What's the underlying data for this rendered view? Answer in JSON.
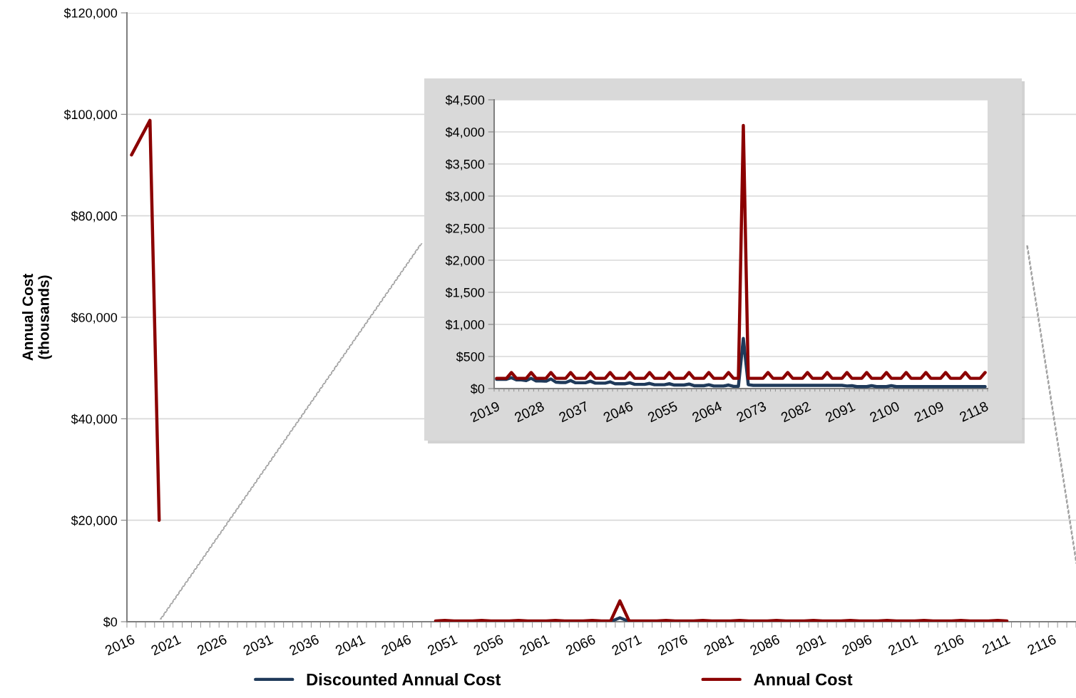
{
  "chart_data": [
    {
      "type": "line",
      "ylabel": "Annual Cost\n(thousands)",
      "categories": [
        "2016",
        null,
        null,
        null,
        null,
        "2021",
        null,
        null,
        null,
        null,
        "2026",
        null,
        null,
        null,
        null,
        "2031",
        null,
        null,
        null,
        null,
        "2036",
        null,
        null,
        null,
        null,
        "2041",
        null,
        null,
        null,
        null,
        "2046",
        null,
        null,
        null,
        null,
        "2051",
        null,
        null,
        null,
        null,
        "2056",
        null,
        null,
        null,
        null,
        "2061",
        null,
        null,
        null,
        null,
        "2066",
        null,
        null,
        null,
        null,
        "2071",
        null,
        null,
        null,
        null,
        "2076",
        null,
        null,
        null,
        null,
        "2081",
        null,
        null,
        null,
        null,
        "2086",
        null,
        null,
        null,
        null,
        "2091",
        null,
        null,
        null,
        null,
        "2096",
        null,
        null,
        null,
        null,
        "2101",
        null,
        null,
        null,
        null,
        "2106",
        null,
        null,
        null,
        null,
        "2111",
        null,
        null,
        null,
        null,
        "2116",
        null,
        null
      ],
      "series": [
        {
          "name": "Discounted Annual Cost",
          "color": "#1f3a5a",
          "values": [
            null,
            null,
            null,
            null,
            null,
            null,
            null,
            null,
            null,
            null,
            null,
            null,
            null,
            null,
            null,
            null,
            null,
            null,
            null,
            null,
            null,
            null,
            null,
            null,
            null,
            null,
            null,
            null,
            null,
            null,
            null,
            null,
            null,
            null,
            null,
            null,
            null,
            null,
            null,
            null,
            null,
            null,
            null,
            null,
            null,
            null,
            null,
            null,
            null,
            null,
            null,
            null,
            35,
            780,
            60,
            null,
            null,
            null,
            null,
            null,
            null,
            null,
            null,
            null,
            null,
            null,
            null,
            null,
            null,
            null,
            null,
            null,
            null,
            null,
            null,
            null,
            null,
            null,
            null,
            null,
            null,
            null,
            null,
            null,
            null,
            null,
            null,
            null,
            null,
            null,
            null,
            null,
            null,
            null,
            null,
            null,
            null,
            null,
            null,
            null,
            null,
            null,
            null
          ]
        },
        {
          "name": "Annual Cost",
          "color": "#8b0000",
          "values": [
            92000,
            95400,
            98800,
            20000,
            null,
            null,
            null,
            null,
            null,
            null,
            null,
            null,
            null,
            null,
            null,
            null,
            null,
            null,
            null,
            null,
            null,
            null,
            null,
            null,
            null,
            null,
            null,
            null,
            null,
            null,
            null,
            null,
            null,
            160,
            250,
            160,
            160,
            160,
            250,
            160,
            160,
            160,
            250,
            160,
            160,
            160,
            250,
            160,
            160,
            160,
            250,
            160,
            160,
            4100,
            160,
            160,
            160,
            160,
            250,
            160,
            160,
            160,
            250,
            160,
            160,
            160,
            250,
            160,
            160,
            160,
            250,
            160,
            160,
            160,
            250,
            160,
            160,
            160,
            250,
            160,
            160,
            160,
            250,
            160,
            160,
            160,
            250,
            160,
            160,
            160,
            250,
            160,
            160,
            160,
            250,
            160,
            null,
            null,
            null,
            null,
            null,
            null,
            null
          ]
        }
      ],
      "ylim": [
        0,
        120000
      ],
      "yticks": [
        {
          "value": 0,
          "label": "$0"
        },
        {
          "value": 20000,
          "label": "$20,000"
        },
        {
          "value": 40000,
          "label": "$40,000"
        },
        {
          "value": 60000,
          "label": "$60,000"
        },
        {
          "value": 80000,
          "label": "$80,000"
        },
        {
          "value": 100000,
          "label": "$100,000"
        },
        {
          "value": 120000,
          "label": "$120,000"
        }
      ],
      "grid": "y",
      "legend": "bottom",
      "marker": "none",
      "line_style": "solid"
    },
    {
      "type": "line",
      "categories": [
        "2019",
        null,
        null,
        null,
        null,
        null,
        null,
        null,
        null,
        "2028",
        null,
        null,
        null,
        null,
        null,
        null,
        null,
        null,
        "2037",
        null,
        null,
        null,
        null,
        null,
        null,
        null,
        null,
        "2046",
        null,
        null,
        null,
        null,
        null,
        null,
        null,
        null,
        "2055",
        null,
        null,
        null,
        null,
        null,
        null,
        null,
        null,
        "2064",
        null,
        null,
        null,
        null,
        null,
        null,
        null,
        null,
        "2073",
        null,
        null,
        null,
        null,
        null,
        null,
        null,
        null,
        "2082",
        null,
        null,
        null,
        null,
        null,
        null,
        null,
        null,
        "2091",
        null,
        null,
        null,
        null,
        null,
        null,
        null,
        null,
        "2100",
        null,
        null,
        null,
        null,
        null,
        null,
        null,
        null,
        "2109",
        null,
        null,
        null,
        null,
        null,
        null,
        null,
        null,
        "2118"
      ],
      "series": [
        {
          "color": "#1f3a5a",
          "values": [
            145,
            145,
            145,
            170,
            135,
            135,
            125,
            160,
            120,
            120,
            115,
            150,
            100,
            95,
            95,
            125,
            90,
            90,
            90,
            115,
            85,
            85,
            85,
            105,
            75,
            75,
            75,
            90,
            65,
            65,
            65,
            80,
            60,
            60,
            60,
            75,
            55,
            55,
            55,
            70,
            45,
            45,
            45,
            60,
            40,
            40,
            40,
            55,
            35,
            35,
            780,
            60,
            50,
            50,
            50,
            50,
            50,
            50,
            50,
            50,
            50,
            50,
            50,
            50,
            50,
            50,
            50,
            50,
            50,
            50,
            50,
            40,
            45,
            30,
            30,
            30,
            45,
            30,
            30,
            30,
            45,
            30,
            30,
            30,
            30,
            30,
            30,
            30,
            30,
            30,
            30,
            30,
            30,
            30,
            30,
            30,
            30,
            30,
            30,
            30
          ]
        },
        {
          "color": "#8b0000",
          "values": [
            160,
            160,
            160,
            250,
            160,
            160,
            160,
            250,
            160,
            160,
            160,
            250,
            160,
            160,
            160,
            250,
            160,
            160,
            160,
            250,
            160,
            160,
            160,
            250,
            160,
            160,
            160,
            250,
            160,
            160,
            160,
            250,
            160,
            160,
            160,
            250,
            160,
            160,
            160,
            250,
            160,
            160,
            160,
            250,
            160,
            160,
            160,
            250,
            160,
            160,
            4100,
            160,
            160,
            160,
            160,
            250,
            160,
            160,
            160,
            250,
            160,
            160,
            160,
            250,
            160,
            160,
            160,
            250,
            160,
            160,
            160,
            250,
            160,
            160,
            160,
            250,
            160,
            160,
            160,
            250,
            160,
            160,
            160,
            250,
            160,
            160,
            160,
            250,
            160,
            160,
            160,
            250,
            160,
            160,
            160,
            250,
            160,
            160,
            160,
            250
          ]
        }
      ],
      "ylim": [
        0,
        4500
      ],
      "yticks": [
        {
          "value": 0,
          "label": "$0"
        },
        {
          "value": 500,
          "label": "$500"
        },
        {
          "value": 1000,
          "label": "$1,000"
        },
        {
          "value": 1500,
          "label": "$1,500"
        },
        {
          "value": 2000,
          "label": "$2,000"
        },
        {
          "value": 2500,
          "label": "$2,500"
        },
        {
          "value": 3000,
          "label": "$3,000"
        },
        {
          "value": 3500,
          "label": "$3,500"
        },
        {
          "value": 4000,
          "label": "$4,000"
        },
        {
          "value": 4500,
          "label": "$4,500"
        }
      ],
      "grid": "y",
      "marker": "none",
      "line_style": "solid"
    }
  ]
}
